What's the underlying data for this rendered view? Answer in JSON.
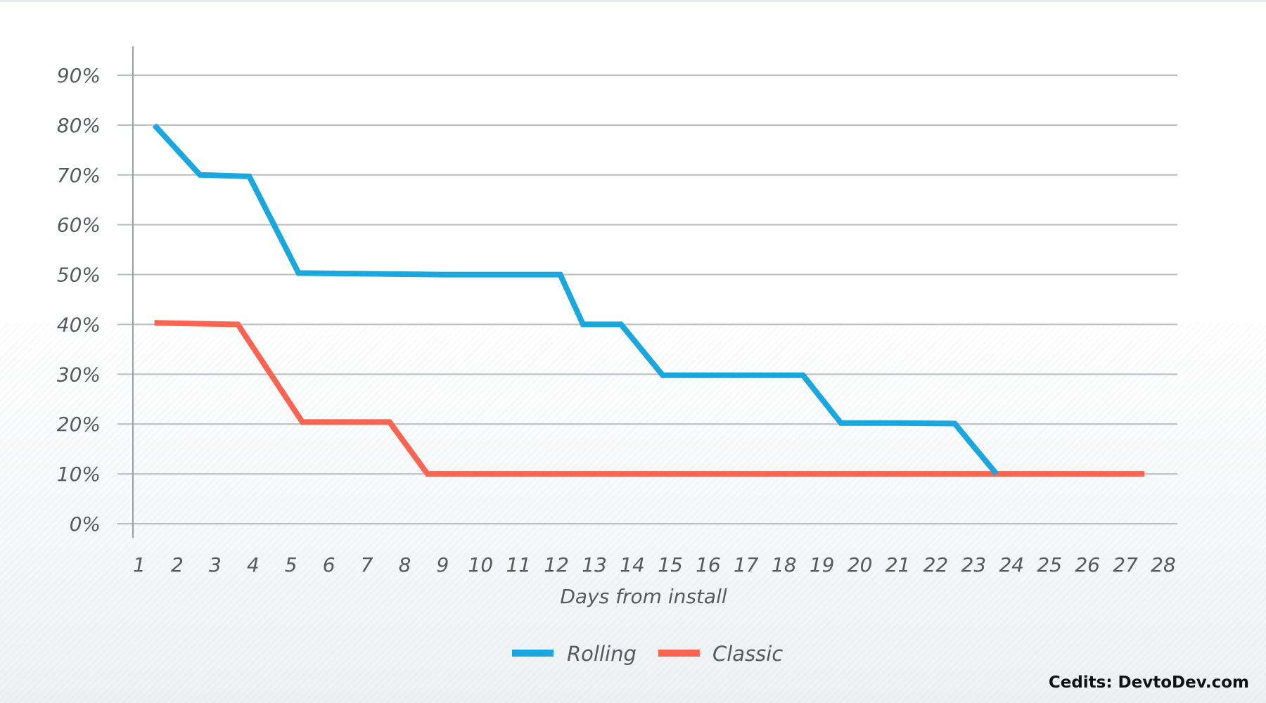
{
  "credits": "Cedits: DevtoDev.com",
  "chart_data": {
    "type": "line",
    "title": "",
    "xlabel": "Days from install",
    "ylabel": "",
    "x": [
      1,
      2,
      3,
      4,
      5,
      6,
      7,
      8,
      9,
      10,
      11,
      12,
      13,
      14,
      15,
      16,
      17,
      18,
      19,
      20,
      21,
      22,
      23,
      24,
      25,
      26,
      27,
      28
    ],
    "x_tick_labels": [
      "1",
      "2",
      "3",
      "4",
      "5",
      "6",
      "7",
      "8",
      "9",
      "10",
      "11",
      "12",
      "13",
      "14",
      "15",
      "16",
      "17",
      "18",
      "19",
      "20",
      "21",
      "22",
      "23",
      "24",
      "25",
      "26",
      "27",
      "28"
    ],
    "y_ticks": [
      0,
      10,
      20,
      30,
      40,
      50,
      60,
      70,
      80,
      90
    ],
    "y_tick_labels": [
      "0%",
      "10%",
      "20%",
      "30%",
      "40%",
      "50%",
      "60%",
      "70%",
      "80%",
      "90%"
    ],
    "ylim": [
      0,
      90
    ],
    "grid": true,
    "legend_position": "bottom-center",
    "series": [
      {
        "name": "Rolling",
        "color": "#1aa7e0",
        "points": [
          [
            1.4,
            80
          ],
          [
            2.6,
            70
          ],
          [
            3.9,
            69.7
          ],
          [
            5.2,
            50.3
          ],
          [
            6.5,
            50.2
          ],
          [
            9,
            50
          ],
          [
            11.3,
            50
          ],
          [
            12.1,
            50
          ],
          [
            12.7,
            40
          ],
          [
            13.7,
            40
          ],
          [
            14.8,
            29.8
          ],
          [
            16,
            29.8
          ],
          [
            18.5,
            29.8
          ],
          [
            19.5,
            20.2
          ],
          [
            21,
            20.2
          ],
          [
            22.5,
            20.1
          ],
          [
            23.6,
            10
          ]
        ]
      },
      {
        "name": "Classic",
        "color": "#fa6450",
        "points": [
          [
            1.4,
            40.3
          ],
          [
            2.9,
            40.1
          ],
          [
            3.6,
            40
          ],
          [
            5.3,
            20.4
          ],
          [
            6.3,
            20.4
          ],
          [
            7.6,
            20.4
          ],
          [
            8.6,
            10
          ],
          [
            9.8,
            10
          ],
          [
            23.6,
            10
          ],
          [
            27.5,
            10
          ]
        ]
      }
    ]
  }
}
